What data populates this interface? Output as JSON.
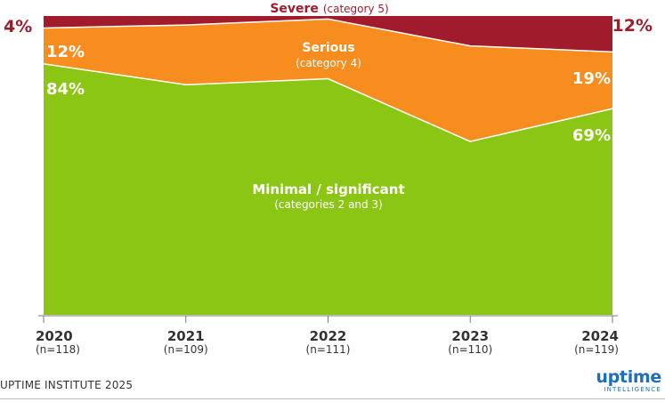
{
  "chart_data": {
    "type": "area",
    "stacked": true,
    "percent": true,
    "x": [
      "2020",
      "2021",
      "2022",
      "2023",
      "2024"
    ],
    "sample_sizes": [
      "(n=118)",
      "(n=109)",
      "(n=111)",
      "(n=110)",
      "(n=119)"
    ],
    "ylim": [
      0,
      100
    ],
    "series": [
      {
        "name": "Minimal / significant",
        "subtitle": "(categories 2 and 3)",
        "values": [
          84,
          77,
          79,
          58,
          69
        ],
        "color": "#8cc614"
      },
      {
        "name": "Serious",
        "subtitle": "(category 4)",
        "values": [
          12,
          20,
          20,
          32,
          19
        ],
        "color": "#f68d1e"
      },
      {
        "name": "Severe",
        "subtitle": "(category 5)",
        "values": [
          4,
          3,
          1,
          10,
          12
        ],
        "color": "#a01c2c"
      }
    ],
    "end_labels": {
      "left": {
        "severe": "4%",
        "serious": "12%",
        "minimal": "84%"
      },
      "right": {
        "severe": "12%",
        "serious": "19%",
        "minimal": "69%"
      }
    },
    "legend": "inline labels",
    "grid": false
  },
  "footer": {
    "source": "UPTIME INSTITUTE 2025",
    "logo_word": "uptime",
    "logo_sub": "INTELLIGENCE"
  }
}
